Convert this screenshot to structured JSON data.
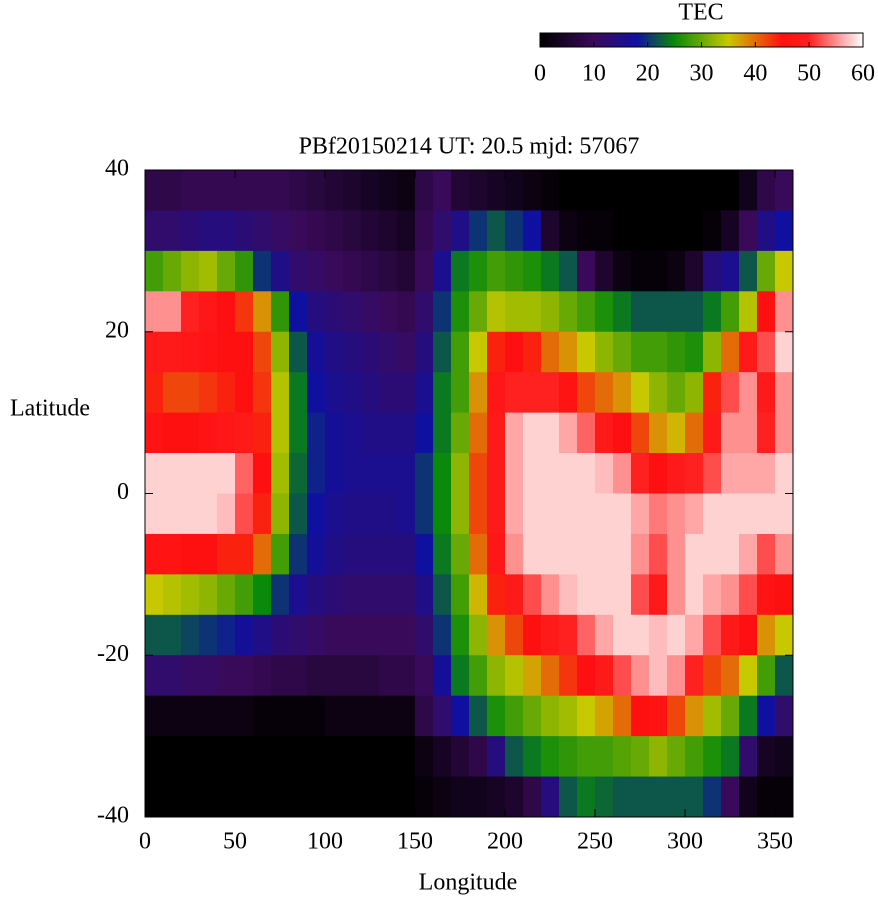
{
  "chart_data": {
    "type": "heatmap",
    "title": "PBf20150214  UT: 20.5  mjd: 57067",
    "x_label": "Longitude",
    "y_label": "Latitude",
    "colorbar_title": "TEC",
    "xlim": [
      0,
      360
    ],
    "ylim": [
      -40,
      40
    ],
    "xticks": [
      0,
      50,
      100,
      150,
      200,
      250,
      300,
      350
    ],
    "yticks": [
      -40,
      -20,
      0,
      20,
      40
    ],
    "clim": [
      0,
      60
    ],
    "cticks": [
      0,
      10,
      20,
      30,
      40,
      50,
      60
    ],
    "colorscale": [
      [
        0,
        "#000000"
      ],
      [
        10,
        "#3a0a5a"
      ],
      [
        18,
        "#1010a0"
      ],
      [
        25,
        "#0a8a0a"
      ],
      [
        35,
        "#c8c800"
      ],
      [
        45,
        "#ff1010"
      ],
      [
        50,
        "#ff2020"
      ],
      [
        60,
        "#ffffff"
      ]
    ],
    "x": [
      5,
      15,
      25,
      35,
      45,
      55,
      65,
      75,
      85,
      95,
      105,
      115,
      125,
      135,
      145,
      155,
      165,
      175,
      185,
      195,
      205,
      215,
      225,
      235,
      245,
      255,
      265,
      275,
      285,
      295,
      305,
      315,
      325,
      335,
      345,
      355
    ],
    "y": [
      37.5,
      32.5,
      27.5,
      22.5,
      17.5,
      12.5,
      7.5,
      2.5,
      -2.5,
      -7.5,
      -12.5,
      -17.5,
      -22.5,
      -27.5,
      -32.5,
      -37.5
    ],
    "z": [
      [
        8,
        12,
        28,
        55,
        48,
        44,
        46,
        58,
        58,
        46,
        35,
        22,
        12,
        2,
        0,
        0
      ],
      [
        8,
        12,
        30,
        55,
        48,
        42,
        45,
        58,
        58,
        46,
        34,
        22,
        12,
        2,
        0,
        0
      ],
      [
        9,
        13,
        32,
        50,
        47,
        42,
        45,
        58,
        58,
        45,
        33,
        21,
        11,
        2,
        0,
        0
      ],
      [
        9,
        14,
        33,
        47,
        46,
        43,
        46,
        58,
        58,
        45,
        32,
        20,
        11,
        2,
        0,
        0
      ],
      [
        9,
        14,
        30,
        45,
        45,
        44,
        47,
        58,
        57,
        44,
        30,
        19,
        10,
        2,
        0,
        0
      ],
      [
        9,
        13,
        27,
        43,
        45,
        45,
        48,
        53,
        52,
        44,
        28,
        17,
        10,
        2,
        0,
        0
      ],
      [
        9,
        12,
        20,
        38,
        42,
        43,
        44,
        45,
        44,
        40,
        25,
        15,
        9,
        1,
        0,
        0
      ],
      [
        9,
        11,
        15,
        27,
        32,
        34,
        34,
        33,
        32,
        28,
        20,
        13,
        8,
        1,
        0,
        0
      ],
      [
        8,
        10,
        12,
        18,
        22,
        24,
        24,
        23,
        22,
        20,
        16,
        12,
        8,
        1,
        0,
        0
      ],
      [
        7,
        9,
        11,
        14,
        17,
        18,
        19,
        19,
        18,
        17,
        14,
        11,
        7,
        1,
        0,
        0
      ],
      [
        6,
        8,
        10,
        13,
        15,
        16,
        17,
        17,
        16,
        15,
        13,
        10,
        7,
        2,
        0,
        0
      ],
      [
        5,
        7,
        9,
        12,
        14,
        15,
        16,
        16,
        15,
        14,
        12,
        10,
        7,
        2,
        0,
        0
      ],
      [
        4,
        6,
        8,
        11,
        13,
        14,
        15,
        16,
        15,
        14,
        12,
        10,
        7,
        2,
        0,
        0
      ],
      [
        3,
        5,
        7,
        10,
        12,
        13,
        15,
        16,
        15,
        14,
        12,
        10,
        8,
        2,
        0,
        0
      ],
      [
        2,
        4,
        6,
        9,
        11,
        13,
        15,
        16,
        16,
        14,
        12,
        10,
        8,
        2,
        0,
        0
      ],
      [
        8,
        9,
        10,
        12,
        14,
        16,
        18,
        20,
        20,
        18,
        15,
        12,
        10,
        8,
        2,
        1
      ],
      [
        10,
        12,
        16,
        20,
        22,
        24,
        24,
        25,
        25,
        24,
        22,
        20,
        17,
        12,
        4,
        2
      ],
      [
        6,
        15,
        24,
        26,
        28,
        28,
        30,
        32,
        32,
        30,
        28,
        26,
        24,
        18,
        6,
        3
      ],
      [
        5,
        20,
        26,
        30,
        35,
        38,
        40,
        42,
        42,
        40,
        36,
        32,
        28,
        22,
        8,
        3
      ],
      [
        4,
        22,
        28,
        34,
        44,
        47,
        48,
        48,
        48,
        47,
        44,
        38,
        32,
        26,
        14,
        4
      ],
      [
        3,
        20,
        27,
        33,
        45,
        50,
        56,
        56,
        56,
        55,
        48,
        42,
        34,
        28,
        22,
        5
      ],
      [
        2,
        18,
        26,
        33,
        44,
        50,
        58,
        58,
        58,
        58,
        52,
        45,
        37,
        30,
        24,
        8
      ],
      [
        1,
        5,
        24,
        32,
        40,
        50,
        58,
        58,
        58,
        58,
        55,
        48,
        40,
        32,
        26,
        14
      ],
      [
        0,
        2,
        22,
        30,
        38,
        46,
        56,
        58,
        58,
        58,
        57,
        50,
        43,
        33,
        27,
        22
      ],
      [
        0,
        1,
        10,
        28,
        35,
        42,
        53,
        58,
        58,
        58,
        58,
        53,
        45,
        35,
        28,
        24
      ],
      [
        0,
        1,
        5,
        26,
        32,
        40,
        48,
        57,
        58,
        58,
        58,
        56,
        48,
        37,
        28,
        23
      ],
      [
        0,
        0,
        2,
        24,
        30,
        38,
        45,
        55,
        58,
        58,
        58,
        58,
        52,
        40,
        29,
        22
      ],
      [
        0,
        0,
        1,
        22,
        28,
        35,
        42,
        50,
        56,
        55,
        52,
        58,
        55,
        45,
        30,
        22
      ],
      [
        0,
        0,
        1,
        22,
        28,
        32,
        38,
        45,
        54,
        52,
        48,
        57,
        57,
        46,
        32,
        22
      ],
      [
        0,
        0,
        2,
        22,
        27,
        30,
        36,
        48,
        55,
        55,
        55,
        58,
        55,
        42,
        30,
        22
      ],
      [
        0,
        0,
        5,
        22,
        26,
        32,
        40,
        50,
        56,
        58,
        58,
        56,
        50,
        38,
        28,
        22
      ],
      [
        0,
        1,
        14,
        24,
        32,
        44,
        48,
        52,
        58,
        58,
        56,
        52,
        42,
        33,
        26,
        20
      ],
      [
        0,
        4,
        16,
        28,
        40,
        52,
        55,
        56,
        58,
        58,
        55,
        48,
        40,
        30,
        24,
        10
      ],
      [
        3,
        10,
        22,
        34,
        48,
        55,
        55,
        56,
        58,
        56,
        52,
        45,
        35,
        24,
        12,
        3
      ],
      [
        8,
        15,
        30,
        45,
        52,
        48,
        50,
        56,
        58,
        52,
        46,
        38,
        28,
        18,
        4,
        1
      ],
      [
        10,
        18,
        35,
        55,
        58,
        55,
        55,
        58,
        58,
        55,
        45,
        35,
        22,
        12,
        3,
        1
      ]
    ]
  }
}
